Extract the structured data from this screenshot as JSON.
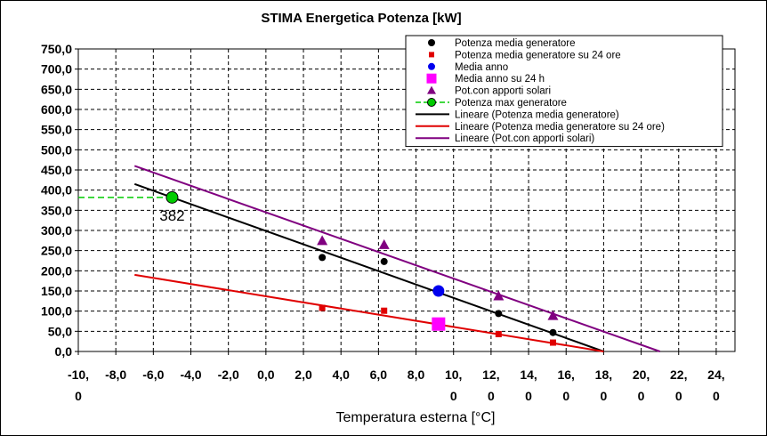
{
  "chart_data": {
    "type": "scatter",
    "title": "STIMA Energetica Potenza [kW]",
    "xlabel": "Temperatura esterna [°C]",
    "ylabel": "",
    "xlim": [
      -10,
      25
    ],
    "ylim": [
      0,
      750
    ],
    "grid": true,
    "legend_position": "top-right",
    "x_ticks": [
      {
        "l1": "-10,",
        "l2": "0"
      },
      {
        "l1": "-8,0",
        "l2": ""
      },
      {
        "l1": "-6,0",
        "l2": ""
      },
      {
        "l1": "-4,0",
        "l2": ""
      },
      {
        "l1": "-2,0",
        "l2": ""
      },
      {
        "l1": "0,0",
        "l2": ""
      },
      {
        "l1": "2,0",
        "l2": ""
      },
      {
        "l1": "4,0",
        "l2": ""
      },
      {
        "l1": "6,0",
        "l2": ""
      },
      {
        "l1": "8,0",
        "l2": ""
      },
      {
        "l1": "10,",
        "l2": "0"
      },
      {
        "l1": "12,",
        "l2": "0"
      },
      {
        "l1": "14,",
        "l2": "0"
      },
      {
        "l1": "16,",
        "l2": "0"
      },
      {
        "l1": "18,",
        "l2": "0"
      },
      {
        "l1": "20,",
        "l2": "0"
      },
      {
        "l1": "22,",
        "l2": "0"
      },
      {
        "l1": "24,",
        "l2": "0"
      }
    ],
    "y_ticks": [
      "0,0",
      "50,0",
      "100,0",
      "150,0",
      "200,0",
      "250,0",
      "300,0",
      "350,0",
      "400,0",
      "450,0",
      "500,0",
      "550,0",
      "600,0",
      "650,0",
      "700,0",
      "750,0"
    ],
    "series": [
      {
        "name": "Potenza media generatore",
        "marker": "circle",
        "color": "#000000",
        "points": [
          [
            3.0,
            233
          ],
          [
            6.3,
            223
          ],
          [
            12.4,
            94
          ],
          [
            15.3,
            47
          ]
        ]
      },
      {
        "name": "Potenza media generatore su 24 ore",
        "marker": "square",
        "color": "#e00000",
        "points": [
          [
            3.0,
            108
          ],
          [
            6.3,
            101
          ],
          [
            12.4,
            43
          ],
          [
            15.3,
            22
          ]
        ]
      },
      {
        "name": "Media anno",
        "marker": "circle-large",
        "color": "#0000ee",
        "points": [
          [
            9.2,
            150
          ]
        ]
      },
      {
        "name": "Media anno su 24 h",
        "marker": "square-large",
        "color": "#ff00ff",
        "points": [
          [
            9.2,
            68
          ]
        ]
      },
      {
        "name": "Pot.con apporti solari",
        "marker": "triangle",
        "color": "#800080",
        "points": [
          [
            3.0,
            275
          ],
          [
            6.3,
            265
          ],
          [
            12.4,
            138
          ],
          [
            15.3,
            89
          ]
        ]
      },
      {
        "name": "Potenza max generatore",
        "marker": "circle-green",
        "color": "#00cc00",
        "points": [
          [
            -5.0,
            382
          ]
        ]
      }
    ],
    "trendlines": [
      {
        "name": "Lineare (Potenza media generatore)",
        "color": "#000000",
        "from": [
          -7,
          415
        ],
        "to": [
          18,
          0
        ]
      },
      {
        "name": "Lineare (Potenza media generatore su 24 ore)",
        "color": "#e00000",
        "from": [
          -7,
          190
        ],
        "to": [
          18,
          0
        ]
      },
      {
        "name": "Lineare (Pot.con apporti solari)",
        "color": "#800080",
        "from": [
          -7,
          460
        ],
        "to": [
          21,
          0
        ]
      }
    ],
    "reference_line": {
      "name": "Potenza max generatore",
      "color": "#00cc00",
      "x_from": -10,
      "x_to": -5,
      "y": 382
    },
    "annotation": {
      "text": "382",
      "x": -5.0,
      "y": 382
    }
  },
  "legend": [
    {
      "label": "Potenza media generatore",
      "kind": "circle",
      "color": "#000000"
    },
    {
      "label": "Potenza media generatore su 24 ore",
      "kind": "square",
      "color": "#e00000"
    },
    {
      "label": "Media anno",
      "kind": "circle",
      "color": "#0000ee"
    },
    {
      "label": "Media anno su 24 h",
      "kind": "square-large",
      "color": "#ff00ff"
    },
    {
      "label": "Pot.con apporti solari",
      "kind": "triangle",
      "color": "#800080"
    },
    {
      "label": "Potenza max generatore",
      "kind": "dash-circle",
      "color": "#00cc00"
    },
    {
      "label": "Lineare (Potenza media generatore)",
      "kind": "line",
      "color": "#000000"
    },
    {
      "label": "Lineare (Potenza media generatore su 24 ore)",
      "kind": "line",
      "color": "#e00000"
    },
    {
      "label": "Lineare (Pot.con apporti solari)",
      "kind": "line",
      "color": "#800080"
    }
  ]
}
